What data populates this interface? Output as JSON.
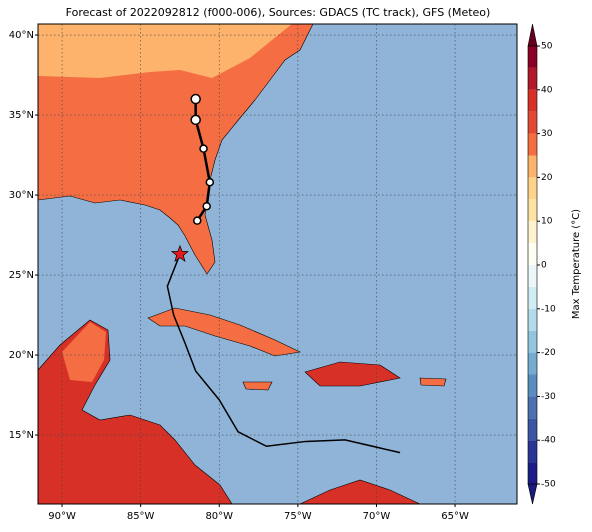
{
  "map": {
    "title": "Forecast of 2022092812 (f000-006), Sources: GDACS (TC track), GFS (Meteo)",
    "xlim": [
      -91.53,
      -61.06
    ],
    "ylim": [
      10.69,
      40.69
    ],
    "xticks": [
      {
        "value": -90,
        "label": "90°W"
      },
      {
        "value": -85,
        "label": "85°W"
      },
      {
        "value": -80,
        "label": "80°W"
      },
      {
        "value": -75,
        "label": "75°W"
      },
      {
        "value": -70,
        "label": "70°W"
      },
      {
        "value": -65,
        "label": "65°W"
      }
    ],
    "yticks": [
      {
        "value": 15,
        "label": "15°N"
      },
      {
        "value": 20,
        "label": "20°N"
      },
      {
        "value": 25,
        "label": "25°N"
      },
      {
        "value": 30,
        "label": "30°N"
      },
      {
        "value": 35,
        "label": "35°N"
      },
      {
        "value": 40,
        "label": "40°N"
      }
    ],
    "grid": true,
    "track": {
      "color": "#000000",
      "lon": [
        -68.5,
        -72.0,
        -74.5,
        -77.0,
        -78.8,
        -80.0,
        -81.5,
        -82.2,
        -82.9,
        -83.3,
        -82.5
      ],
      "lat": [
        13.9,
        14.7,
        14.6,
        14.3,
        15.2,
        17.2,
        19.0,
        20.8,
        22.5,
        24.3,
        26.3
      ]
    },
    "landfall": {
      "lon": -82.5,
      "lat": 26.3,
      "color": "#e41a1c"
    },
    "forecast": {
      "lon": [
        -81.5,
        -81.5,
        -81.0,
        -80.6,
        -80.8,
        -81.4
      ],
      "lat": [
        36.0,
        34.7,
        32.9,
        30.8,
        29.3,
        28.4
      ]
    },
    "colorbar": {
      "label": "Max Temperature (°C)",
      "lim": [
        -50,
        50
      ],
      "ticks": [
        -50,
        -40,
        -30,
        -20,
        -10,
        0,
        10,
        20,
        30,
        40,
        50
      ],
      "levels": [
        -50,
        -45,
        -40,
        -35,
        -30,
        -25,
        -20,
        -15,
        -10,
        -5,
        0,
        5,
        10,
        15,
        20,
        25,
        30,
        35,
        40,
        45,
        50
      ],
      "colors": [
        "#1c1c88",
        "#2b3595",
        "#3b55a4",
        "#4a70b0",
        "#5b8cc0",
        "#75aad1",
        "#93c5df",
        "#b3dbeb",
        "#d2ecf4",
        "#ecf7fa",
        "#fffff4",
        "#fff3cf",
        "#fee3a3",
        "#fdd38c",
        "#fdb36b",
        "#f46d43",
        "#e34a33",
        "#d73027",
        "#b2182b",
        "#8b0026"
      ],
      "under": "#1a1a80",
      "over": "#67001f"
    }
  }
}
